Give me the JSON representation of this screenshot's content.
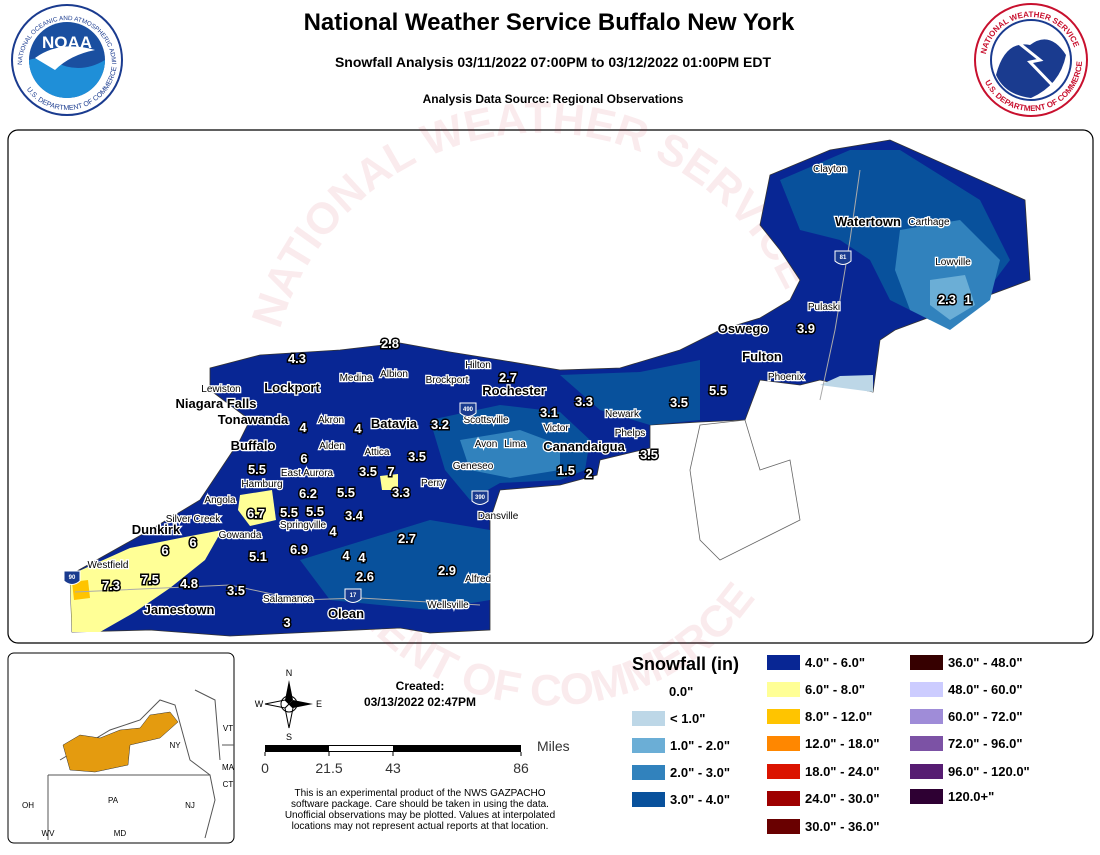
{
  "header": {
    "title": "National Weather Service Buffalo New York",
    "subtitle": "Snowfall Analysis 03/11/2022 07:00PM to 03/12/2022 01:00PM EDT",
    "source": "Analysis Data Source: Regional Observations"
  },
  "logos": {
    "noaa": "NOAA",
    "noaa_ring_top": "NATIONAL OCEANIC AND ATMOSPHERIC ADMINISTRATION",
    "noaa_ring_bottom": "U.S. DEPARTMENT OF COMMERCE",
    "nws_ring_top": "NATIONAL WEATHER SERVICE",
    "nws_ring_bottom": "U.S. DEPARTMENT OF COMMERCE"
  },
  "map": {
    "watermark_top": "NATIONAL WEATHER SERVICE",
    "watermark_bottom": "DEPARTMENT OF COMMERCE",
    "cities": [
      "Clayton",
      "Watertown",
      "Carthage",
      "Lowville",
      "Pulaski",
      "Oswego",
      "Fulton",
      "Phoenix",
      "Lewiston",
      "Lockport",
      "Medina",
      "Albion",
      "Brockport",
      "Hilton",
      "Rochester",
      "Niagara Falls",
      "Tonawanda",
      "Akron",
      "Batavia",
      "Scottsville",
      "Victor",
      "Newark",
      "Phelps",
      "Buffalo",
      "Alden",
      "Avon",
      "Lima",
      "Canandaigua",
      "Attica",
      "East Aurora",
      "Geneseo",
      "Perry",
      "Hamburg",
      "Angola",
      "Silver Creek",
      "Dunkirk",
      "Springville",
      "Gowanda",
      "Dansville",
      "Westfield",
      "Alfred",
      "Salamanca",
      "Wellsville",
      "Jamestown",
      "Olean"
    ],
    "observations": [
      2.8,
      4.3,
      2.7,
      3.1,
      3.3,
      3.2,
      4,
      4,
      3.5,
      6,
      5.5,
      3.5,
      7,
      3.3,
      6.2,
      5.5,
      5.5,
      5.5,
      3.4,
      6.7,
      4,
      1.5,
      2,
      3.5,
      3.5,
      5.5,
      3.9,
      2.3,
      1,
      6,
      6,
      6.9,
      5.1,
      2.7,
      4,
      4,
      2.6,
      2.9,
      7.3,
      7.5,
      4.8,
      3.5,
      3
    ],
    "shields": [
      "490",
      "390",
      "90",
      "81",
      "17"
    ]
  },
  "legend": {
    "title": "Snowfall (in)",
    "entries": [
      {
        "label": "0.0\"",
        "color": "#ffffff"
      },
      {
        "label": "< 1.0\"",
        "color": "#bdd7e7"
      },
      {
        "label": "1.0\" - 2.0\"",
        "color": "#6baed6"
      },
      {
        "label": "2.0\" - 3.0\"",
        "color": "#3182bd"
      },
      {
        "label": "3.0\" - 4.0\"",
        "color": "#08519c"
      },
      {
        "label": "4.0\" - 6.0\"",
        "color": "#082694"
      },
      {
        "label": "6.0\" - 8.0\"",
        "color": "#ffff96"
      },
      {
        "label": "8.0\" - 12.0\"",
        "color": "#ffc400"
      },
      {
        "label": "12.0\" - 18.0\"",
        "color": "#ff8700"
      },
      {
        "label": "18.0\" - 24.0\"",
        "color": "#db1400"
      },
      {
        "label": "24.0\" - 30.0\"",
        "color": "#9e0000"
      },
      {
        "label": "30.0\" - 36.0\"",
        "color": "#690000"
      },
      {
        "label": "36.0\" - 48.0\"",
        "color": "#360000"
      },
      {
        "label": "48.0\" - 60.0\"",
        "color": "#ccccff"
      },
      {
        "label": "60.0\" - 72.0\"",
        "color": "#9f8cd8"
      },
      {
        "label": "72.0\" - 96.0\"",
        "color": "#7c52a5"
      },
      {
        "label": "96.0\" - 120.0\"",
        "color": "#561c72"
      },
      {
        "label": "120.0+\"",
        "color": "#2e0033"
      }
    ]
  },
  "scale": {
    "unit": "Miles",
    "ticks": [
      0,
      21.5,
      43,
      86
    ]
  },
  "compass": [
    "N",
    "E",
    "S",
    "W"
  ],
  "created": {
    "label": "Created:",
    "date": "03/13/2022 02:47PM"
  },
  "disclaimer": [
    "This is an experimental product of the NWS GAZPACHO",
    "software package. Care should be taken in using the data.",
    "Unofficial observations may be plotted. Values at interpolated",
    "locations may not represent actual reports at that location."
  ],
  "inset": {
    "labels": [
      "VT",
      "NY",
      "MA",
      "CT",
      "PA",
      "NJ",
      "OH",
      "WV",
      "MD"
    ]
  }
}
